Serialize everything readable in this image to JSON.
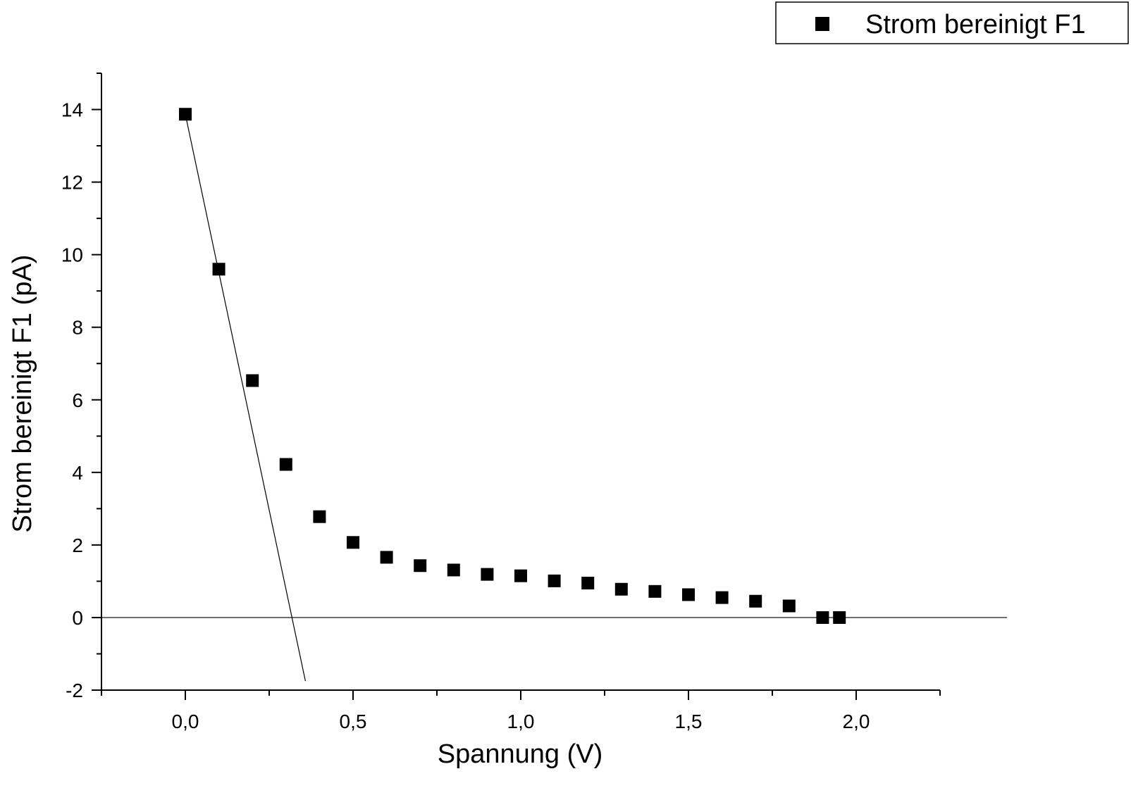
{
  "chart_data": {
    "type": "scatter",
    "xlabel": "Spannung (V)",
    "ylabel": "Strom bereinigt F1 (pA)",
    "xlim": [
      -0.25,
      2.25
    ],
    "ylim": [
      -2,
      15
    ],
    "x_ticks": [
      0.0,
      0.5,
      1.0,
      1.5,
      2.0
    ],
    "x_tick_labels": [
      "0,0",
      "0,5",
      "1,0",
      "1,5",
      "2,0"
    ],
    "y_ticks": [
      -2,
      0,
      2,
      4,
      6,
      8,
      10,
      12,
      14
    ],
    "y_tick_labels": [
      "-2",
      "0",
      "2",
      "4",
      "6",
      "8",
      "10",
      "12",
      "14"
    ],
    "grid": false,
    "legend_position": "top-right",
    "marker_color": "#000000",
    "series": [
      {
        "name": "Strom bereinigt F1",
        "marker": "square",
        "points": [
          {
            "x": 0.0,
            "y": 13.87
          },
          {
            "x": 0.1,
            "y": 9.6
          },
          {
            "x": 0.2,
            "y": 6.53
          },
          {
            "x": 0.3,
            "y": 4.22
          },
          {
            "x": 0.4,
            "y": 2.78
          },
          {
            "x": 0.5,
            "y": 2.07
          },
          {
            "x": 0.6,
            "y": 1.66
          },
          {
            "x": 0.7,
            "y": 1.43
          },
          {
            "x": 0.8,
            "y": 1.31
          },
          {
            "x": 0.9,
            "y": 1.19
          },
          {
            "x": 1.0,
            "y": 1.15
          },
          {
            "x": 1.1,
            "y": 1.01
          },
          {
            "x": 1.2,
            "y": 0.95
          },
          {
            "x": 1.3,
            "y": 0.78
          },
          {
            "x": 1.4,
            "y": 0.72
          },
          {
            "x": 1.5,
            "y": 0.63
          },
          {
            "x": 1.6,
            "y": 0.55
          },
          {
            "x": 1.7,
            "y": 0.45
          },
          {
            "x": 1.8,
            "y": 0.32
          },
          {
            "x": 1.9,
            "y": 0.0
          },
          {
            "x": 1.95,
            "y": 0.0
          }
        ]
      }
    ],
    "fit_line": {
      "x": [
        0.0,
        0.358
      ],
      "y": [
        13.87,
        -1.75
      ]
    },
    "zero_line": {
      "y": 0,
      "x": [
        -0.25,
        2.45
      ]
    }
  }
}
